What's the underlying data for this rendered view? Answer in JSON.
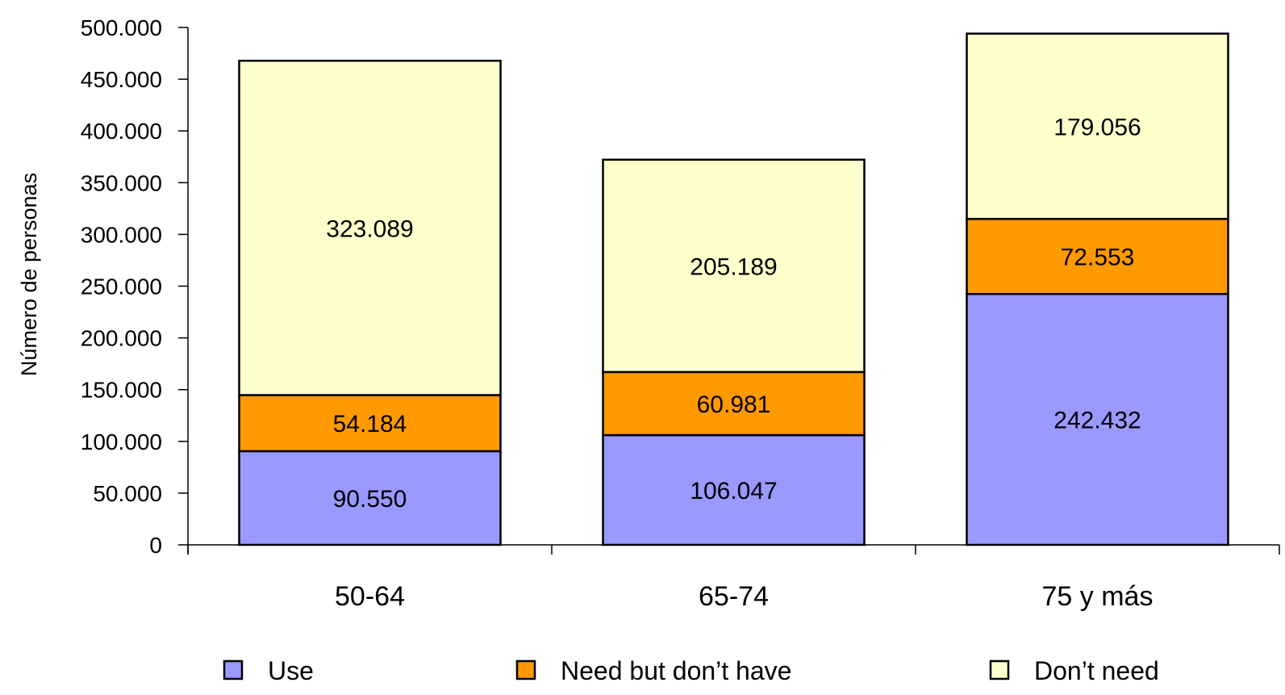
{
  "chart_data": {
    "type": "bar",
    "stacked": true,
    "categories": [
      "50-64",
      "65-74",
      "75 y más"
    ],
    "series": [
      {
        "name": "Use",
        "values": [
          90550,
          106047,
          242432
        ],
        "labels": [
          "90.550",
          "106.047",
          "242.432"
        ],
        "color": "#9999FF"
      },
      {
        "name": "Need but don’t have",
        "values": [
          54184,
          60981,
          72553
        ],
        "labels": [
          "54.184",
          "60.981",
          "72.553"
        ],
        "color": "#FF9900"
      },
      {
        "name": "Don’t need",
        "values": [
          323089,
          205189,
          179056
        ],
        "labels": [
          "323.089",
          "205.189",
          "179.056"
        ],
        "color": "#FFFFCC"
      }
    ],
    "ylabel": "Número de personas",
    "xlabel": "",
    "ylim": [
      0,
      500000
    ],
    "yticks": [
      0,
      50000,
      100000,
      150000,
      200000,
      250000,
      300000,
      350000,
      400000,
      450000,
      500000
    ],
    "ytick_labels": [
      "0",
      "50.000",
      "100.000",
      "150.000",
      "200.000",
      "250.000",
      "300.000",
      "350.000",
      "400.000",
      "450.000",
      "500.000"
    ],
    "grid": false,
    "legend_position": "bottom"
  }
}
